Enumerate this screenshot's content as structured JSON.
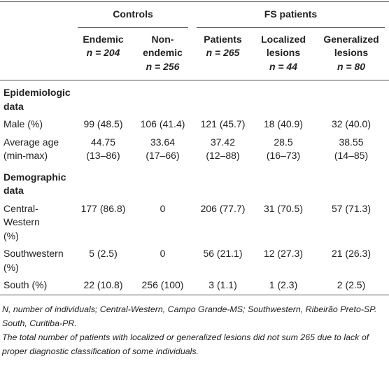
{
  "table": {
    "groups": [
      {
        "label": "Controls",
        "span": 2
      },
      {
        "label": "FS patients",
        "span": 3
      }
    ],
    "columns": [
      {
        "lines": [
          "Endemic"
        ],
        "n": "n = 204"
      },
      {
        "lines": [
          "Non-",
          "endemic"
        ],
        "n": "n = 256"
      },
      {
        "lines": [
          "Patients"
        ],
        "n": "n = 265"
      },
      {
        "lines": [
          "Localized",
          "lesions"
        ],
        "n": "n = 44"
      },
      {
        "lines": [
          "Generalized",
          "lesions"
        ],
        "n": "n = 80"
      }
    ],
    "sections": [
      {
        "title": [
          "Epidemiologic",
          "data"
        ],
        "rows": [
          {
            "label": [
              "Male (%)"
            ],
            "cells": [
              [
                "99 (48.5)"
              ],
              [
                "106 (41.4)"
              ],
              [
                "121 (45.7)"
              ],
              [
                "18 (40.9)"
              ],
              [
                "32 (40.0)"
              ]
            ]
          },
          {
            "label": [
              "Average age",
              "(min-max)"
            ],
            "cells": [
              [
                "44.75",
                "(13–86)"
              ],
              [
                "33.64",
                "(17–66)"
              ],
              [
                "37.42",
                "(12–88)"
              ],
              [
                "28.5",
                "(16–73)"
              ],
              [
                "38.55",
                "(14–85)"
              ]
            ]
          }
        ]
      },
      {
        "title": [
          "Demographic",
          "data"
        ],
        "rows": [
          {
            "label": [
              "Central-",
              "Western",
              "(%)"
            ],
            "cells": [
              [
                "177 (86.8)"
              ],
              [
                "0"
              ],
              [
                "206 (77.7)"
              ],
              [
                "31 (70.5)"
              ],
              [
                "57 (71.3)"
              ]
            ]
          },
          {
            "label": [
              "Southwestern",
              "(%)"
            ],
            "cells": [
              [
                "5 (2.5)"
              ],
              [
                "0"
              ],
              [
                "56 (21.1)"
              ],
              [
                "12 (27.3)"
              ],
              [
                "21 (26.3)"
              ]
            ]
          },
          {
            "label": [
              "South (%)"
            ],
            "cells": [
              [
                "22 (10.8)"
              ],
              [
                "256 (100)"
              ],
              [
                "3 (1.1)"
              ],
              [
                "1 (2.3)"
              ],
              [
                "2 (2.5)"
              ]
            ]
          }
        ]
      }
    ]
  },
  "notes": [
    "N, number of individuals; Central-Western, Campo Grande-MS; Southwestern, Ribeirão Preto-SP. South, Curitiba-PR.",
    "The total number of patients with localized or generalized lesions did not sum 265 due to lack of proper diagnostic classification of some individuals."
  ]
}
